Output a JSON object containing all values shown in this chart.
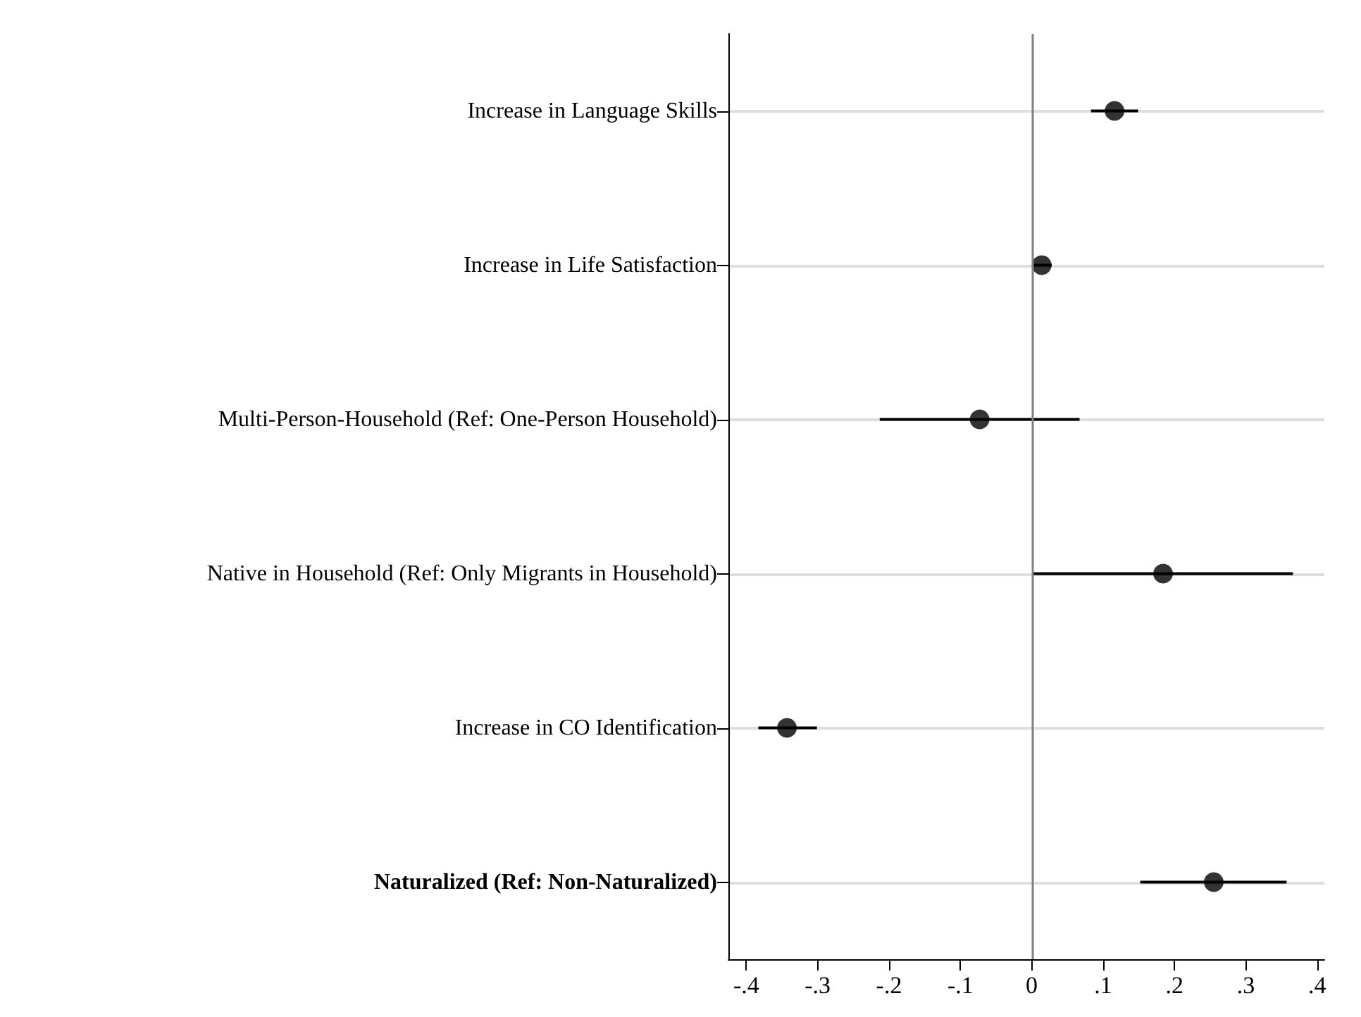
{
  "chart_data": {
    "type": "scatter",
    "orientation": "horizontal",
    "categories": [
      "Increase in Language Skills",
      "Increase in Life Satisfaction",
      "Multi-Person-Household (Ref: One-Person Household)",
      "Native in Household (Ref: Only Migrants in Household)",
      "Increase in CO Identification",
      "Naturalized (Ref: Non-Naturalized)"
    ],
    "values": [
      0.116,
      0.014,
      -0.073,
      0.184,
      -0.343,
      0.255
    ],
    "errors": [
      [
        0.083,
        0.149
      ],
      [
        0.003,
        0.028
      ],
      [
        -0.213,
        0.067
      ],
      [
        0.001,
        0.366
      ],
      [
        -0.383,
        -0.301
      ],
      [
        0.152,
        0.357
      ]
    ],
    "color": "#000000",
    "marker": "circle",
    "xlim": [
      -0.425,
      0.41
    ],
    "xticks": [
      {
        "value": -0.4,
        "label": "-.4"
      },
      {
        "value": -0.3,
        "label": "-.3"
      },
      {
        "value": -0.2,
        "label": "-.2"
      },
      {
        "value": -0.1,
        "label": "-.1"
      },
      0,
      {
        "value": 0.1,
        "label": ".1"
      },
      {
        "value": 0.2,
        "label": ".2"
      },
      {
        "value": 0.3,
        "label": ".3"
      },
      {
        "value": 0.4,
        "label": ".4"
      }
    ],
    "grid": "y",
    "ref_lines": [
      {
        "axis": "x",
        "value": 0,
        "color": "#808080"
      }
    ]
  }
}
